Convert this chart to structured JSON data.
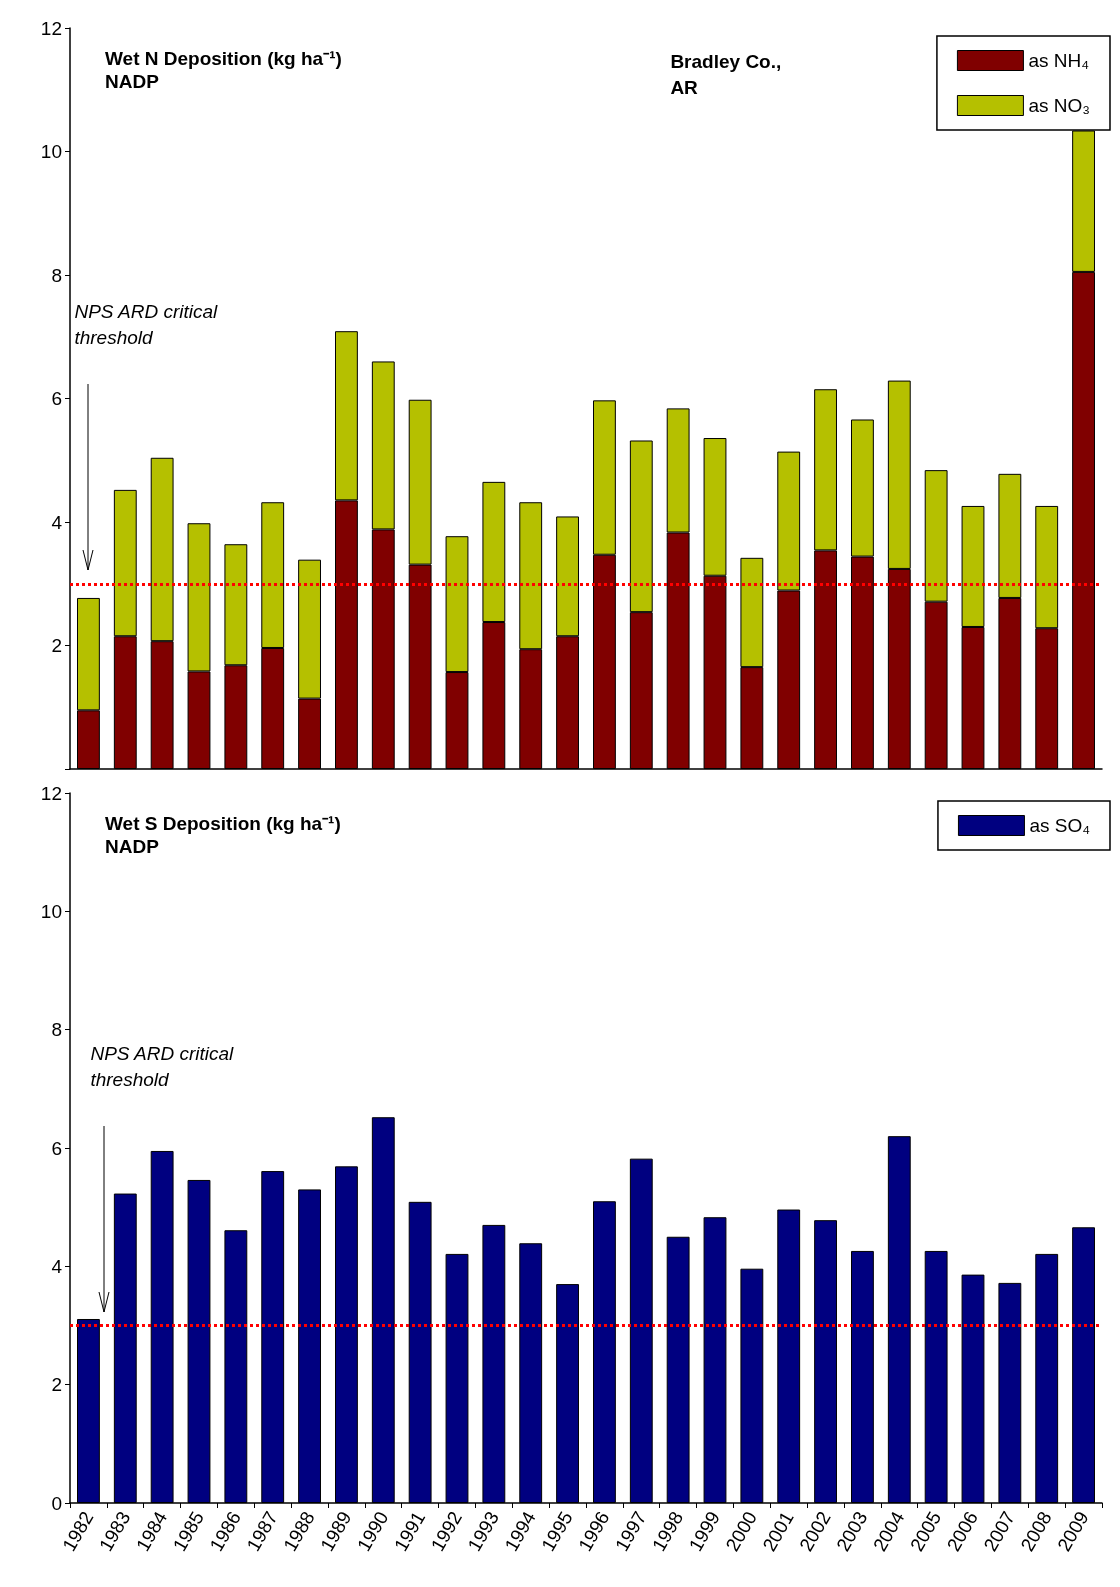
{
  "chart_data": [
    {
      "type": "bar",
      "stacked": true,
      "title": "Wet N Deposition (kg ha⁻¹)",
      "subtitle": "NADP",
      "annotations": [
        "NPS ARD critical threshold",
        "Bradley Co., AR"
      ],
      "categories": [
        "1982",
        "1983",
        "1984",
        "1985",
        "1986",
        "1987",
        "1988",
        "1989",
        "1990",
        "1991",
        "1992",
        "1993",
        "1994",
        "1995",
        "1996",
        "1997",
        "1998",
        "1999",
        "2000",
        "2001",
        "2002",
        "2003",
        "2004",
        "2005",
        "2006",
        "2007",
        "2008",
        "2009"
      ],
      "series": [
        {
          "name": "as NH₄",
          "color": "#800000",
          "values": [
            0.95,
            2.15,
            2.07,
            1.58,
            1.68,
            1.96,
            1.14,
            4.35,
            3.88,
            3.31,
            1.57,
            2.38,
            1.94,
            2.15,
            3.47,
            2.54,
            3.83,
            3.13,
            1.65,
            2.89,
            3.54,
            3.44,
            3.24,
            2.71,
            2.3,
            2.77,
            2.28,
            8.05
          ]
        },
        {
          "name": "as NO₃",
          "color": "#b5c000",
          "values": [
            1.82,
            2.37,
            2.97,
            2.4,
            1.96,
            2.36,
            2.25,
            2.74,
            2.72,
            2.67,
            2.2,
            2.27,
            2.38,
            1.94,
            2.5,
            2.78,
            2.01,
            2.23,
            1.77,
            2.25,
            2.61,
            2.22,
            3.05,
            2.13,
            1.96,
            2.01,
            1.98,
            2.29
          ]
        }
      ],
      "ylim": [
        0,
        12
      ],
      "yticks": [
        {
          "value": 0,
          "label": null
        },
        2,
        4,
        6,
        8,
        10,
        12
      ],
      "tick_labels": "y",
      "legend": "top right",
      "ref_lines": [
        {
          "axis": "y",
          "value": 3,
          "color": "#ff0000",
          "line_style": "dotted"
        }
      ]
    },
    {
      "type": "bar",
      "title": "Wet S Deposition (kg ha⁻¹)",
      "subtitle": "NADP",
      "annotations": [
        "NPS ARD critical threshold"
      ],
      "categories": [
        "1982",
        "1983",
        "1984",
        "1985",
        "1986",
        "1987",
        "1988",
        "1989",
        "1990",
        "1991",
        "1992",
        "1993",
        "1994",
        "1995",
        "1996",
        "1997",
        "1998",
        "1999",
        "2000",
        "2001",
        "2002",
        "2003",
        "2004",
        "2005",
        "2006",
        "2007",
        "2008",
        "2009"
      ],
      "series": [
        {
          "name": "as SO₄",
          "color": "#000080",
          "values": [
            3.11,
            5.23,
            5.95,
            5.46,
            4.61,
            5.61,
            5.3,
            5.69,
            6.52,
            5.09,
            4.21,
            4.7,
            4.39,
            3.7,
            5.1,
            5.82,
            4.5,
            4.83,
            3.96,
            4.96,
            4.78,
            4.26,
            6.2,
            4.26,
            3.86,
            3.72,
            4.21,
            4.66
          ]
        }
      ],
      "ylim": [
        0,
        12
      ],
      "yticks": [
        0,
        2,
        4,
        6,
        8,
        10,
        12
      ],
      "legend": "top right",
      "ref_lines": [
        {
          "axis": "y",
          "value": 3,
          "color": "#ff0000",
          "line_style": "dotted"
        }
      ]
    }
  ]
}
